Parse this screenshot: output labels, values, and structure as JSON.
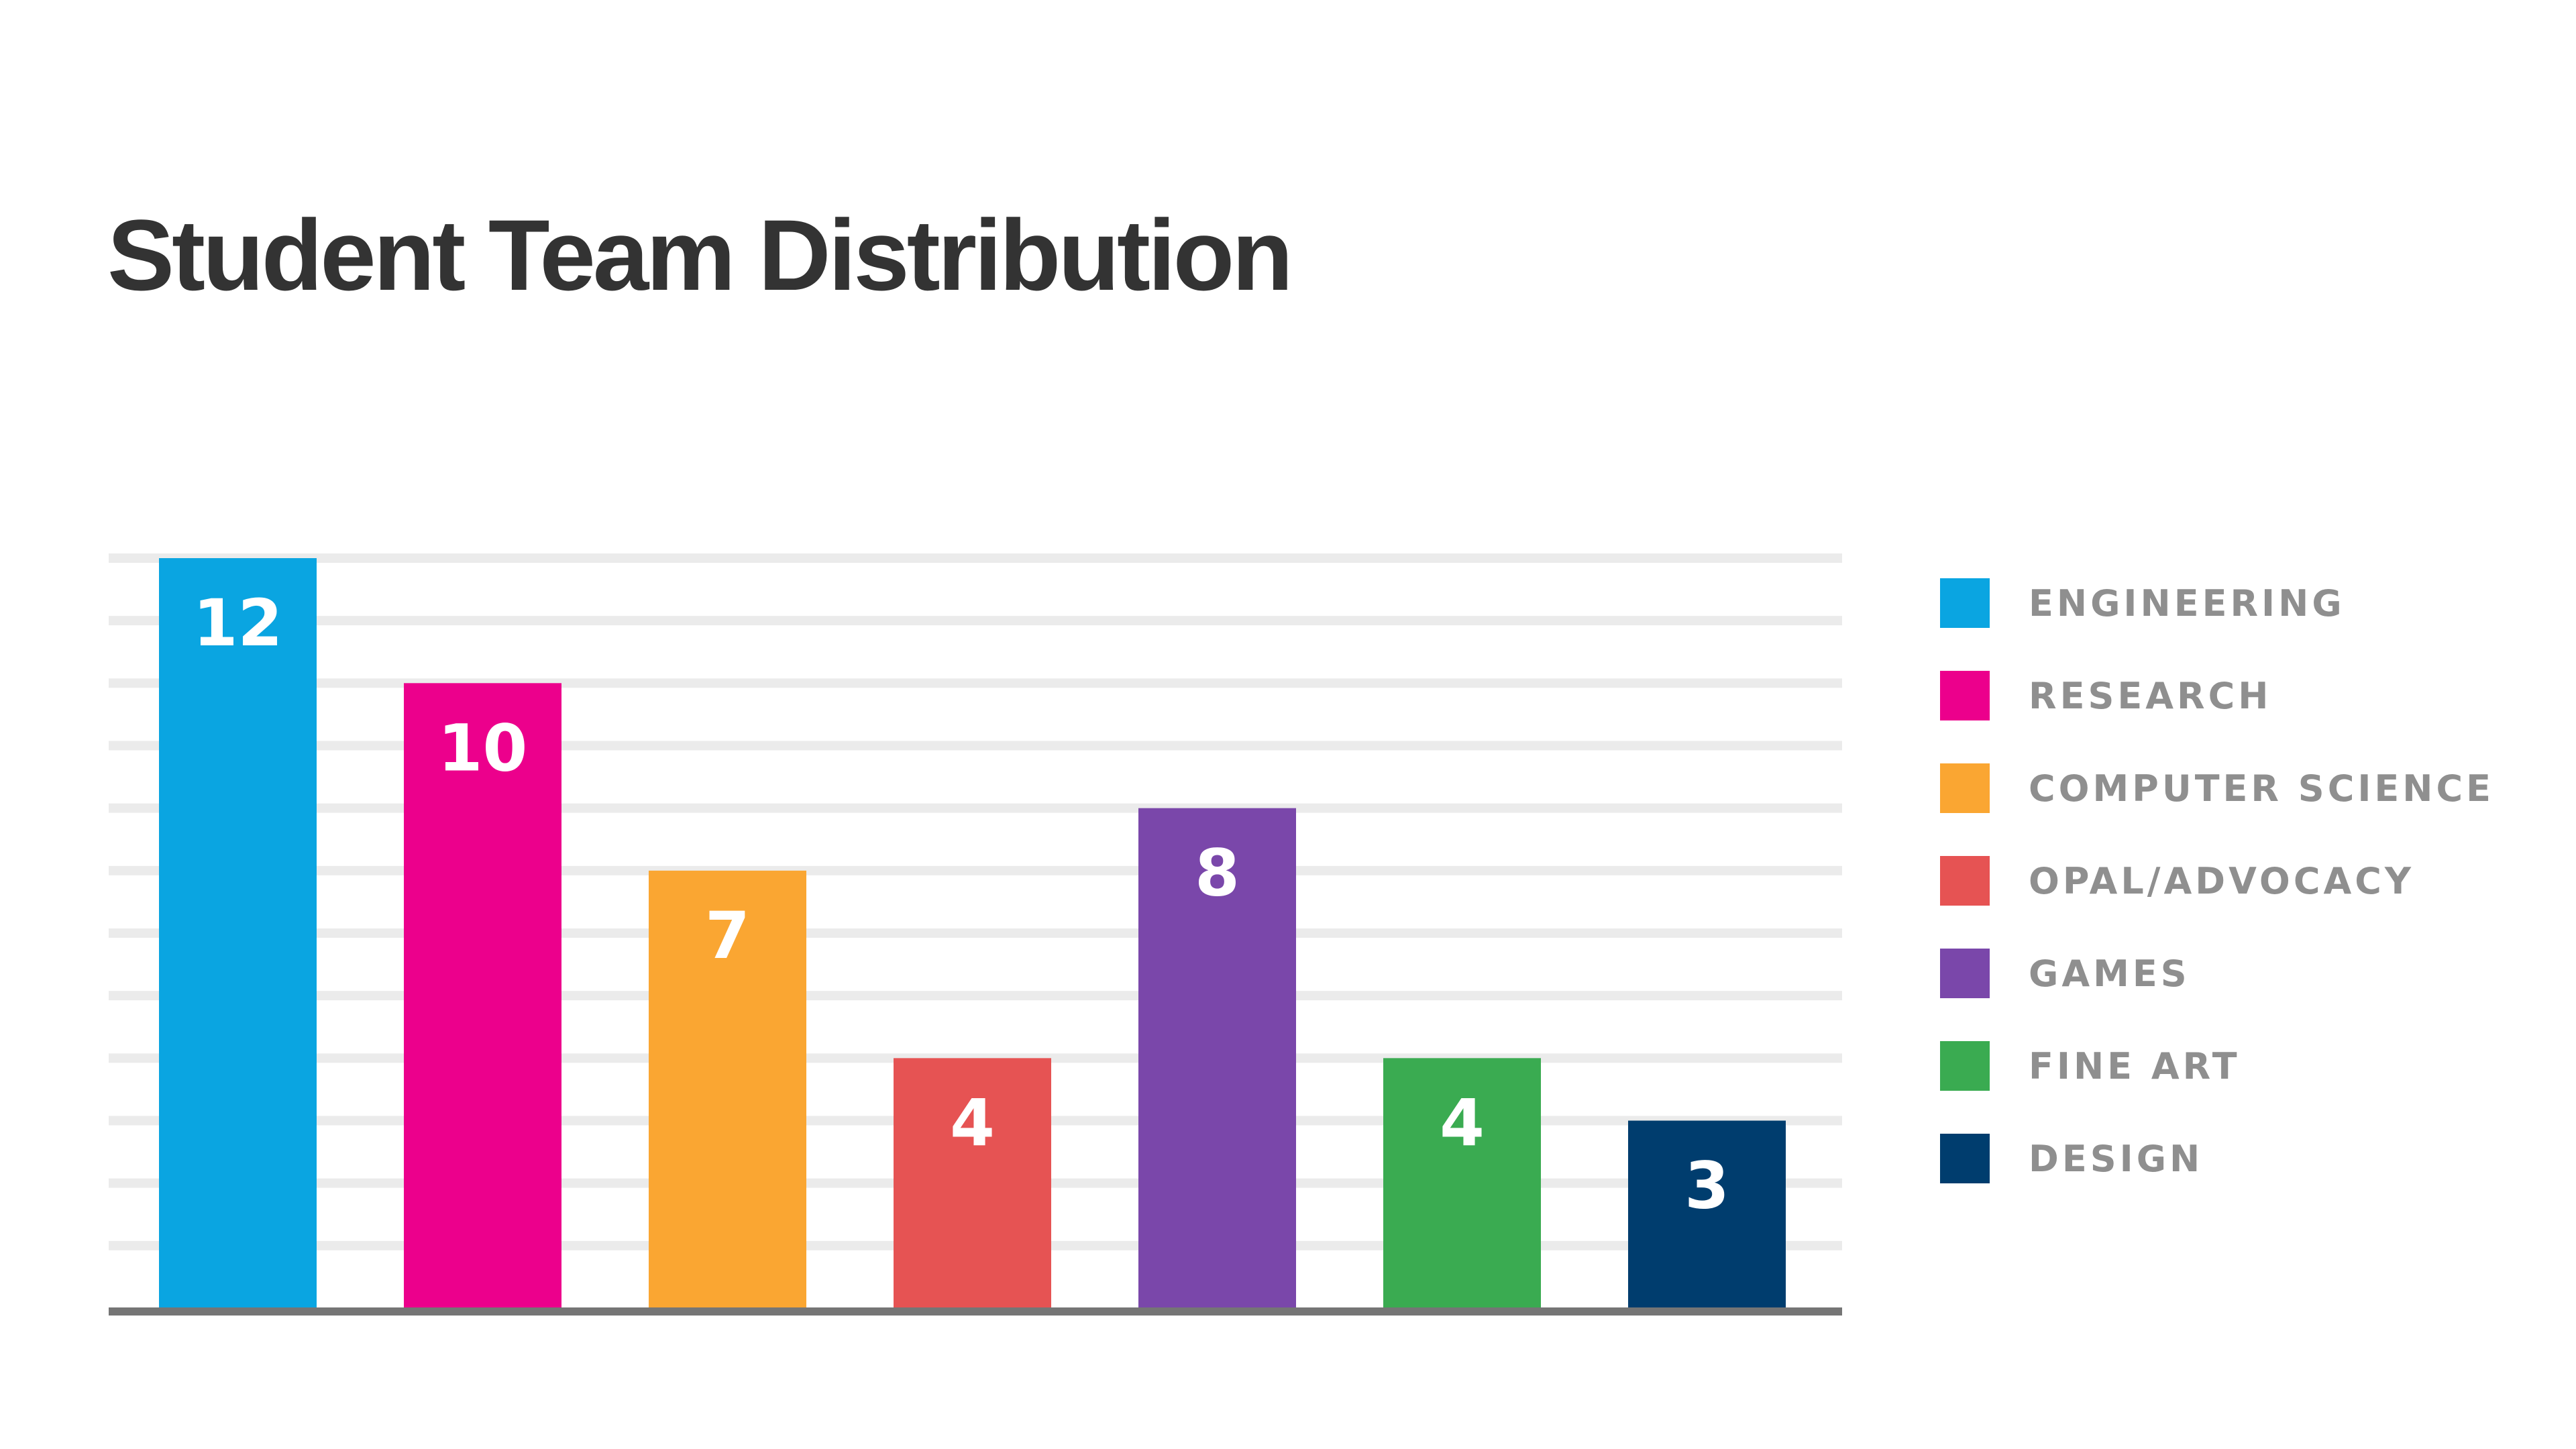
{
  "chart_data": {
    "type": "bar",
    "title": "Student Team Distribution",
    "xlabel": "",
    "ylabel": "",
    "ylim": [
      0,
      12
    ],
    "grid": true,
    "legend_position": "right",
    "categories": [
      "ENGINEERING",
      "RESEARCH",
      "COMPUTER SCIENCE",
      "OPAL/ADVOCACY",
      "GAMES",
      "FINE ART",
      "DESIGN"
    ],
    "values": [
      12,
      10,
      7,
      4,
      8,
      4,
      3
    ],
    "data_labels": [
      "12",
      "10",
      "7",
      "4",
      "8",
      "4",
      "3"
    ],
    "colors": [
      "#0aa5e1",
      "#ec008c",
      "#faa632",
      "#e65353",
      "#7a47aa",
      "#3aab51",
      "#003d6e"
    ]
  },
  "style": {
    "grid_color": "#ebebeb",
    "axis_color": "#757575",
    "legend_text_color": "#8f8f8f",
    "title_color": "#333333"
  }
}
